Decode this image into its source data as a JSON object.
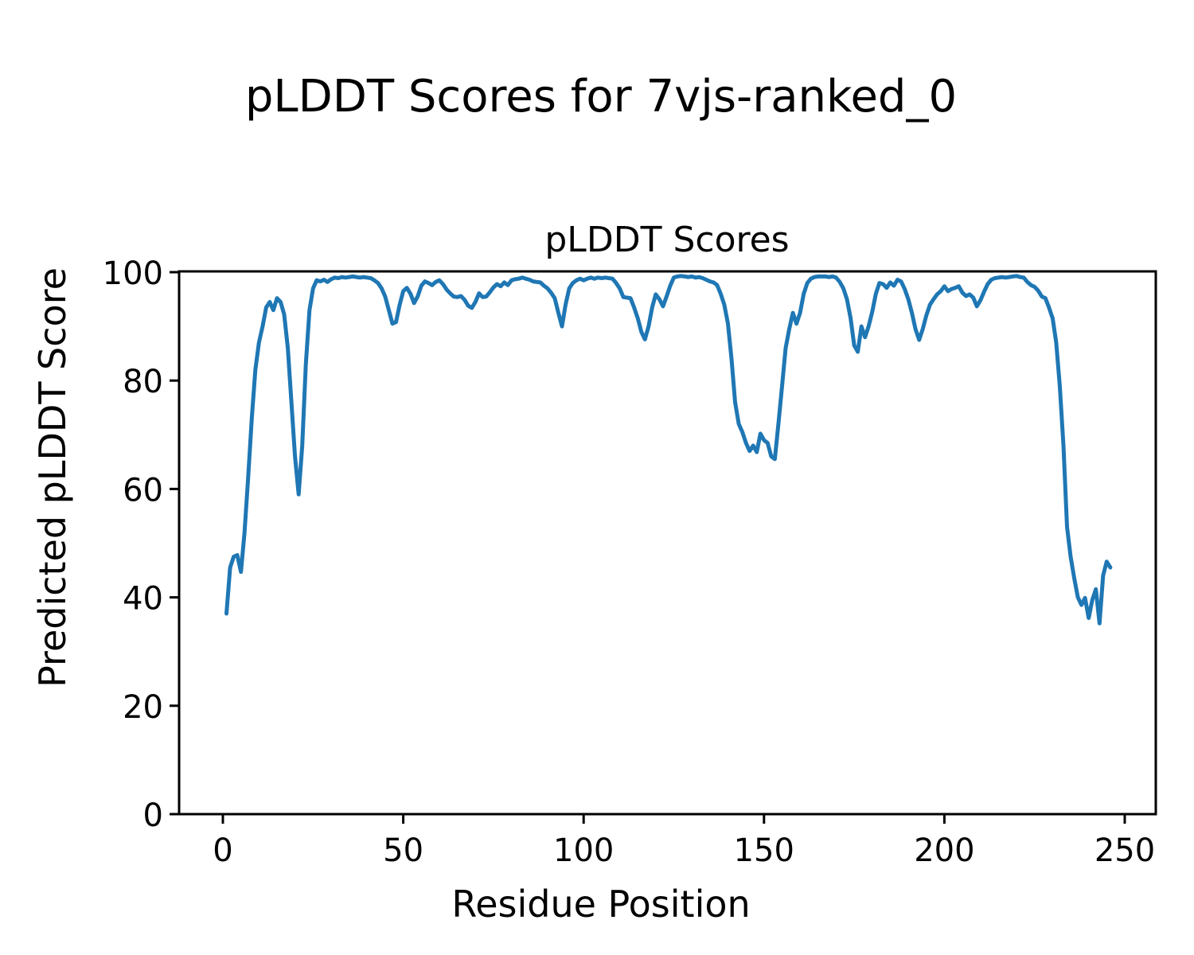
{
  "figure": {
    "title": "pLDDT Scores for 7vjs-ranked_0"
  },
  "chart_data": {
    "type": "line",
    "title": "pLDDT Scores",
    "xlabel": "Residue Position",
    "ylabel": "Predicted pLDDT Score",
    "x_ticks": [
      0,
      50,
      100,
      150,
      200,
      250
    ],
    "y_ticks": [
      0,
      20,
      40,
      60,
      80,
      100
    ],
    "xlim": [
      -12,
      259
    ],
    "ylim": [
      0,
      100
    ],
    "grid": false,
    "legend": "none",
    "line_color": "#1f77b4",
    "series": [
      {
        "name": "pLDDT",
        "x_start": 1,
        "x_step": 1,
        "values": [
          37.0,
          45.5,
          47.5,
          47.8,
          44.7,
          52.0,
          62.0,
          73.0,
          82.0,
          87.0,
          90.0,
          93.5,
          94.5,
          93.0,
          95.2,
          94.5,
          92.2,
          86.0,
          76.0,
          66.0,
          59.0,
          68.0,
          83.0,
          93.0,
          97.0,
          98.5,
          98.3,
          98.6,
          98.2,
          98.7,
          99.0,
          98.9,
          99.1,
          99.0,
          99.1,
          99.2,
          99.1,
          99.0,
          99.1,
          99.0,
          98.9,
          98.5,
          98.0,
          97.0,
          95.5,
          93.0,
          90.5,
          90.8,
          94.0,
          96.5,
          97.1,
          96.0,
          94.3,
          95.5,
          97.5,
          98.3,
          98.0,
          97.6,
          98.2,
          98.5,
          97.8,
          96.8,
          96.1,
          95.5,
          95.4,
          95.6,
          94.9,
          93.8,
          93.4,
          94.5,
          96.1,
          95.4,
          95.5,
          96.3,
          97.2,
          97.8,
          97.4,
          98.1,
          97.6,
          98.5,
          98.7,
          98.8,
          99.0,
          98.8,
          98.6,
          98.3,
          98.2,
          98.1,
          97.5,
          97.0,
          96.2,
          95.2,
          92.5,
          90.0,
          94.0,
          97.0,
          98.0,
          98.5,
          98.8,
          98.5,
          98.8,
          99.0,
          98.8,
          99.0,
          98.9,
          99.0,
          98.9,
          98.8,
          98.0,
          97.0,
          95.4,
          95.3,
          95.2,
          93.5,
          91.5,
          89.0,
          87.6,
          90.0,
          93.5,
          95.9,
          95.0,
          93.7,
          95.5,
          97.5,
          99.0,
          99.2,
          99.3,
          99.2,
          99.1,
          99.2,
          99.0,
          99.1,
          98.9,
          98.6,
          98.3,
          98.1,
          97.6,
          96.0,
          94.0,
          90.5,
          84.0,
          76.0,
          72.0,
          70.5,
          68.5,
          67.0,
          68.0,
          66.8,
          70.2,
          69.0,
          68.5,
          66.0,
          65.5,
          72.0,
          79.0,
          86.0,
          89.5,
          92.5,
          90.5,
          92.5,
          96.0,
          98.0,
          98.8,
          99.1,
          99.2,
          99.2,
          99.2,
          99.1,
          99.2,
          99.0,
          98.2,
          97.0,
          95.0,
          91.5,
          86.5,
          85.3,
          90.0,
          88.0,
          90.0,
          92.7,
          96.0,
          98.0,
          97.8,
          97.1,
          98.1,
          97.5,
          98.6,
          98.3,
          96.9,
          95.0,
          92.5,
          89.5,
          87.5,
          89.5,
          92.0,
          94.0,
          95.0,
          95.9,
          96.5,
          97.4,
          96.5,
          96.9,
          97.1,
          97.4,
          96.2,
          95.6,
          95.9,
          95.3,
          93.7,
          94.8,
          96.4,
          97.8,
          98.6,
          98.9,
          99.0,
          99.1,
          99.0,
          99.1,
          99.2,
          99.3,
          99.1,
          99.0,
          98.2,
          97.6,
          97.3,
          96.6,
          95.5,
          95.2,
          93.5,
          91.5,
          87.0,
          79.0,
          68.0,
          53.0,
          47.5,
          43.5,
          40.0,
          38.6,
          39.9,
          36.2,
          39.5,
          41.5,
          35.2,
          44.0,
          46.6,
          45.5
        ]
      }
    ]
  }
}
